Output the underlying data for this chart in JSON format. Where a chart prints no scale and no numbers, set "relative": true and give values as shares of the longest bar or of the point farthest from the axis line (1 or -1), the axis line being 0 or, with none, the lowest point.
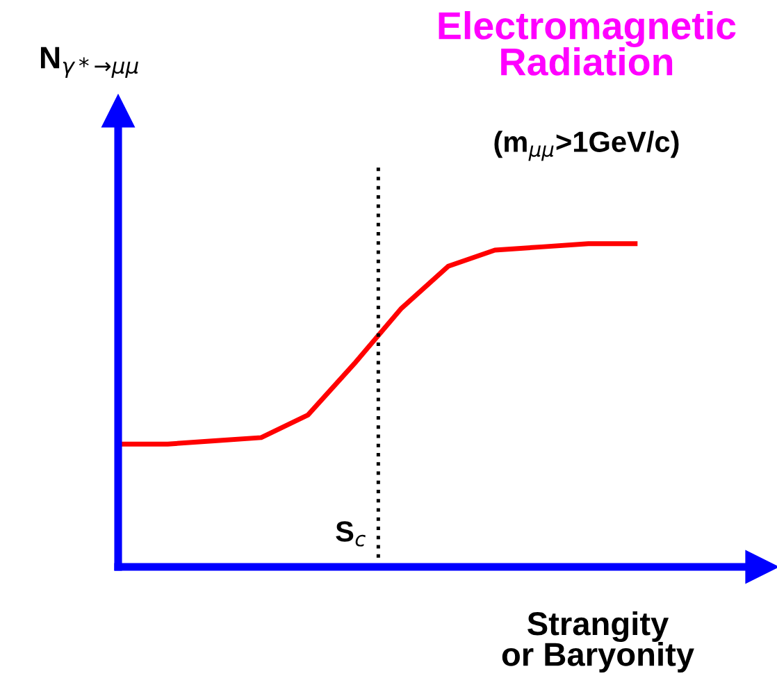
{
  "chart_data": {
    "type": "line",
    "relative": true,
    "title": "Electromagnetic\nRadiation",
    "xlabel": "Strangity\nor Baryonity",
    "annotations": [
      "(m$_{μμ}$>1GeV/c)",
      "S$_{c}$",
      "N$_{γ*→μμ}$"
    ],
    "categories": [
      null,
      null,
      null,
      null,
      null,
      null,
      null,
      null,
      null,
      null,
      null,
      null
    ],
    "series": [
      {
        "color": "#ff0000",
        "values": [
          0.38,
          0.38,
          0.39,
          0.4,
          0.47,
          0.63,
          0.8,
          0.93,
          0.98,
          0.99,
          1.0,
          1.0
        ]
      }
    ],
    "legend": false,
    "line_style": "solid"
  }
}
